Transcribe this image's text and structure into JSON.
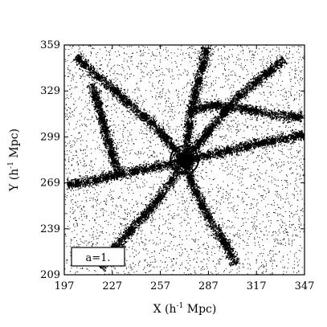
{
  "chart_data": {
    "type": "scatter",
    "title": "",
    "xlabel": "X (h",
    "xlabel_sup": "-1",
    "xlabel_tail": " Mpc)",
    "ylabel": "Y (h",
    "ylabel_sup": "-1",
    "ylabel_tail": " Mpc)",
    "xlim": [
      197,
      347
    ],
    "ylim": [
      209,
      359
    ],
    "x_ticks": [
      197,
      227,
      257,
      287,
      317,
      347
    ],
    "y_ticks": [
      209,
      239,
      269,
      299,
      329,
      359
    ],
    "grid": false,
    "annotation": "a=1.",
    "marked_halo": {
      "x": 272,
      "y": 284
    },
    "filaments": [
      {
        "points": [
          [
            272,
            284
          ],
          [
            262,
            296
          ],
          [
            252,
            308
          ],
          [
            240,
            318
          ],
          [
            228,
            330
          ],
          [
            214,
            342
          ],
          [
            204,
            352
          ]
        ]
      },
      {
        "points": [
          [
            272,
            284
          ],
          [
            283,
            298
          ],
          [
            294,
            312
          ],
          [
            306,
            326
          ],
          [
            320,
            338
          ],
          [
            334,
            350
          ]
        ]
      },
      {
        "points": [
          [
            272,
            284
          ],
          [
            260,
            281
          ],
          [
            246,
            278
          ],
          [
            231,
            275
          ],
          [
            216,
            271
          ],
          [
            199,
            268
          ]
        ]
      },
      {
        "points": [
          [
            272,
            284
          ],
          [
            286,
            287
          ],
          [
            302,
            291
          ],
          [
            318,
            295
          ],
          [
            334,
            298
          ],
          [
            346,
            301
          ]
        ]
      },
      {
        "points": [
          [
            272,
            284
          ],
          [
            276,
            270
          ],
          [
            282,
            256
          ],
          [
            289,
            243
          ],
          [
            297,
            230
          ],
          [
            304,
            216
          ]
        ]
      },
      {
        "points": [
          [
            272,
            284
          ],
          [
            274,
            300
          ],
          [
            276,
            316
          ],
          [
            279,
            330
          ],
          [
            283,
            345
          ],
          [
            286,
            358
          ]
        ]
      },
      {
        "points": [
          [
            272,
            284
          ],
          [
            262,
            268
          ],
          [
            252,
            254
          ],
          [
            241,
            242
          ],
          [
            230,
            229
          ],
          [
            219,
            214
          ]
        ]
      },
      {
        "points": [
          [
            274,
            316
          ],
          [
            290,
            320
          ],
          [
            308,
            318
          ],
          [
            326,
            314
          ],
          [
            345,
            312
          ]
        ]
      },
      {
        "points": [
          [
            231,
            275
          ],
          [
            226,
            290
          ],
          [
            222,
            305
          ],
          [
            218,
            320
          ],
          [
            214,
            334
          ]
        ]
      }
    ],
    "background_density": 0.45
  }
}
